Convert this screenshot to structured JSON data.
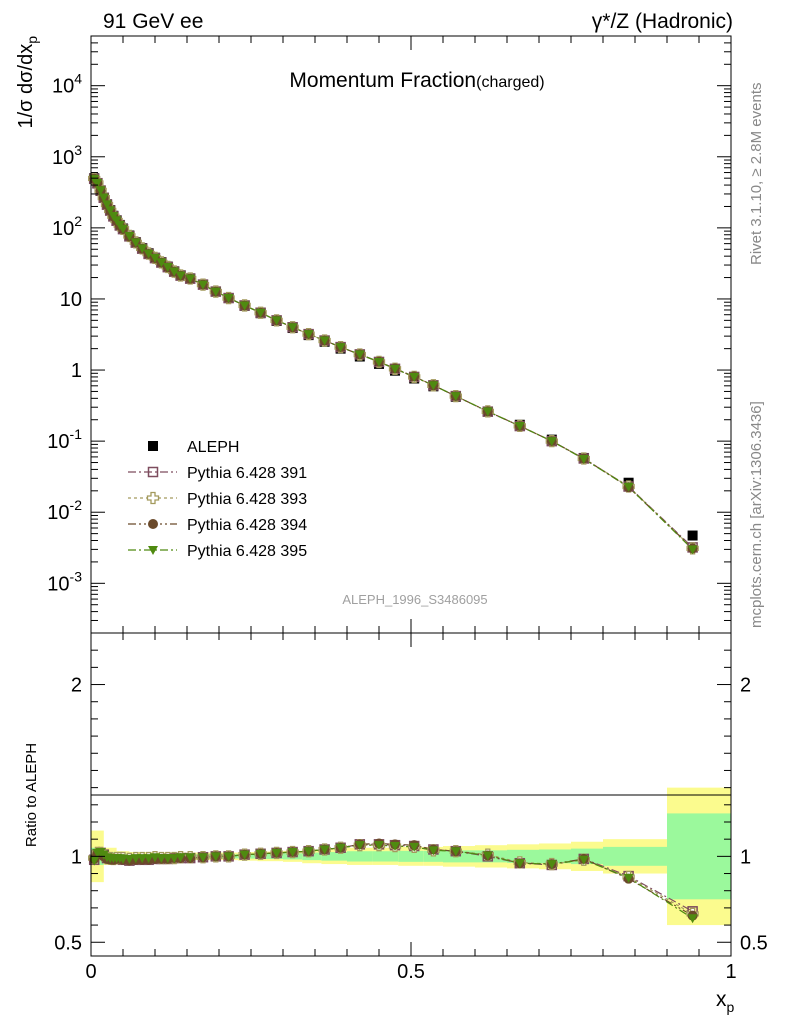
{
  "header": {
    "left": "91 GeV ee",
    "right": "γ*/Z (Hadronic)"
  },
  "side_text": {
    "rivet": "Rivet 3.1.10, ≥ 2.8M events",
    "mcplots": "mcplots.cern.ch [arXiv:1306.3436]"
  },
  "chart_data": [
    {
      "type": "scatter",
      "title": "Momentum Fraction",
      "title_suffix": "(charged)",
      "ylabel": "1/σ dσ/dx_p",
      "xlabel": "x_p",
      "watermark": "ALEPH_1996_S3486095",
      "yscale": "log",
      "xlim": [
        0,
        1
      ],
      "ylim": [
        0.0002,
        50000
      ],
      "ytick_labels": [
        "10^-3",
        "10^-2",
        "10^-1",
        "1",
        "10",
        "10^2",
        "10^3",
        "10^4"
      ],
      "xtick_labels": [
        "0",
        "0.5",
        "1"
      ],
      "legend_position": "lower-left",
      "series": [
        {
          "name": "ALEPH",
          "color": "#000000",
          "marker": "filled-square",
          "x": [
            0.005,
            0.01,
            0.015,
            0.02,
            0.025,
            0.03,
            0.035,
            0.04,
            0.045,
            0.05,
            0.06,
            0.07,
            0.08,
            0.09,
            0.1,
            0.11,
            0.12,
            0.13,
            0.14,
            0.155,
            0.175,
            0.195,
            0.215,
            0.24,
            0.265,
            0.29,
            0.315,
            0.34,
            0.365,
            0.39,
            0.42,
            0.45,
            0.475,
            0.505,
            0.535,
            0.57,
            0.62,
            0.67,
            0.72,
            0.77,
            0.84,
            0.94
          ],
          "y": [
            500,
            420,
            330,
            265,
            215,
            178,
            148,
            128,
            110,
            98,
            78,
            63,
            52,
            44,
            38,
            33,
            28.5,
            24.5,
            21.5,
            19.5,
            16,
            12.7,
            10.3,
            8,
            6.3,
            4.9,
            3.9,
            3.1,
            2.5,
            2.0,
            1.55,
            1.22,
            0.98,
            0.76,
            0.59,
            0.42,
            0.26,
            0.17,
            0.105,
            0.058,
            0.026,
            0.0047
          ]
        },
        {
          "name": "Pythia 6.428 391",
          "color": "#7d4c5e",
          "marker": "open-square",
          "x": [
            0.005,
            0.01,
            0.015,
            0.02,
            0.025,
            0.03,
            0.035,
            0.04,
            0.045,
            0.05,
            0.06,
            0.07,
            0.08,
            0.09,
            0.1,
            0.11,
            0.12,
            0.13,
            0.14,
            0.155,
            0.175,
            0.195,
            0.215,
            0.24,
            0.265,
            0.29,
            0.315,
            0.34,
            0.365,
            0.39,
            0.42,
            0.45,
            0.475,
            0.505,
            0.535,
            0.57,
            0.62,
            0.67,
            0.72,
            0.77,
            0.84,
            0.94
          ],
          "y": [
            490,
            425,
            335,
            265,
            212,
            175,
            145,
            126,
            108,
            96,
            76,
            62,
            51,
            43,
            37.5,
            32.5,
            28,
            24.2,
            21.3,
            19.3,
            15.9,
            12.7,
            10.3,
            8.1,
            6.4,
            5.0,
            4.0,
            3.2,
            2.6,
            2.1,
            1.66,
            1.3,
            1.04,
            0.8,
            0.61,
            0.43,
            0.26,
            0.163,
            0.1,
            0.057,
            0.023,
            0.0032
          ]
        },
        {
          "name": "Pythia 6.428 393",
          "color": "#a39a5d",
          "marker": "open-cross",
          "x": [
            0.005,
            0.01,
            0.015,
            0.02,
            0.025,
            0.03,
            0.035,
            0.04,
            0.045,
            0.05,
            0.06,
            0.07,
            0.08,
            0.09,
            0.1,
            0.11,
            0.12,
            0.13,
            0.14,
            0.155,
            0.175,
            0.195,
            0.215,
            0.24,
            0.265,
            0.29,
            0.315,
            0.34,
            0.365,
            0.39,
            0.42,
            0.45,
            0.475,
            0.505,
            0.535,
            0.57,
            0.62,
            0.67,
            0.72,
            0.77,
            0.84,
            0.94
          ],
          "y": [
            495,
            428,
            336,
            266,
            213,
            176,
            146,
            127,
            109,
            97,
            77,
            62.5,
            51.5,
            43.5,
            37.8,
            32.7,
            28.2,
            24.3,
            21.4,
            19.4,
            15.9,
            12.7,
            10.3,
            8.1,
            6.4,
            5.0,
            4.0,
            3.2,
            2.6,
            2.1,
            1.65,
            1.3,
            1.04,
            0.8,
            0.61,
            0.43,
            0.262,
            0.164,
            0.1,
            0.057,
            0.023,
            0.0031
          ]
        },
        {
          "name": "Pythia 6.428 394",
          "color": "#6b4a2b",
          "marker": "filled-circle",
          "x": [
            0.005,
            0.01,
            0.015,
            0.02,
            0.025,
            0.03,
            0.035,
            0.04,
            0.045,
            0.05,
            0.06,
            0.07,
            0.08,
            0.09,
            0.1,
            0.11,
            0.12,
            0.13,
            0.14,
            0.155,
            0.175,
            0.195,
            0.215,
            0.24,
            0.265,
            0.29,
            0.315,
            0.34,
            0.365,
            0.39,
            0.42,
            0.45,
            0.475,
            0.505,
            0.535,
            0.57,
            0.62,
            0.67,
            0.72,
            0.77,
            0.84,
            0.94
          ],
          "y": [
            492,
            426,
            334,
            264,
            211,
            174,
            145,
            126,
            108,
            96,
            76,
            62,
            51,
            43,
            37.5,
            32.5,
            28,
            24.2,
            21.3,
            19.3,
            15.9,
            12.7,
            10.3,
            8.1,
            6.4,
            5.0,
            4.0,
            3.2,
            2.6,
            2.1,
            1.66,
            1.31,
            1.05,
            0.81,
            0.61,
            0.43,
            0.262,
            0.163,
            0.1,
            0.057,
            0.0225,
            0.0031
          ]
        },
        {
          "name": "Pythia 6.428 395",
          "color": "#4f8a10",
          "marker": "filled-triangle-down",
          "x": [
            0.005,
            0.01,
            0.015,
            0.02,
            0.025,
            0.03,
            0.035,
            0.04,
            0.045,
            0.05,
            0.06,
            0.07,
            0.08,
            0.09,
            0.1,
            0.11,
            0.12,
            0.13,
            0.14,
            0.155,
            0.175,
            0.195,
            0.215,
            0.24,
            0.265,
            0.29,
            0.315,
            0.34,
            0.365,
            0.39,
            0.42,
            0.45,
            0.475,
            0.505,
            0.535,
            0.57,
            0.62,
            0.67,
            0.72,
            0.77,
            0.84,
            0.94
          ],
          "y": [
            488,
            430,
            338,
            267,
            214,
            177,
            147,
            128,
            110,
            97,
            77,
            62.5,
            51.5,
            43.5,
            37.8,
            32.7,
            28.2,
            24.3,
            21.4,
            19.4,
            15.9,
            12.7,
            10.3,
            8.1,
            6.4,
            5.0,
            4.0,
            3.2,
            2.6,
            2.1,
            1.66,
            1.3,
            1.04,
            0.8,
            0.61,
            0.43,
            0.262,
            0.163,
            0.1,
            0.056,
            0.0228,
            0.003
          ]
        }
      ]
    },
    {
      "type": "scatter",
      "ylabel": "Ratio to ALEPH",
      "xlabel": "x_p",
      "xlim": [
        0,
        1
      ],
      "ylim": [
        0.42,
        2.3
      ],
      "ytick_labels": [
        "0.5",
        "1",
        "2"
      ],
      "xtick_labels": [
        "0",
        "0.5",
        "1"
      ],
      "band": {
        "edges": [
          0,
          0.02,
          0.04,
          0.06,
          0.08,
          0.1,
          0.12,
          0.14,
          0.16,
          0.18,
          0.2,
          0.23,
          0.26,
          0.3,
          0.33,
          0.36,
          0.4,
          0.44,
          0.48,
          0.52,
          0.55,
          0.6,
          0.65,
          0.7,
          0.75,
          0.8,
          0.9,
          1.0
        ],
        "inner": [
          0.05,
          0.025,
          0.015,
          0.012,
          0.012,
          0.012,
          0.012,
          0.012,
          0.012,
          0.012,
          0.012,
          0.013,
          0.015,
          0.018,
          0.022,
          0.025,
          0.03,
          0.03,
          0.032,
          0.032,
          0.035,
          0.035,
          0.038,
          0.04,
          0.045,
          0.055,
          0.25
        ],
        "outer": [
          0.15,
          0.05,
          0.03,
          0.025,
          0.025,
          0.022,
          0.022,
          0.022,
          0.022,
          0.022,
          0.022,
          0.025,
          0.028,
          0.032,
          0.04,
          0.045,
          0.05,
          0.05,
          0.055,
          0.055,
          0.06,
          0.065,
          0.07,
          0.075,
          0.085,
          0.1,
          0.4
        ],
        "inner_color": "#9bf99c",
        "outer_color": "#fbfb8e"
      },
      "series": [
        {
          "name": "Pythia 6.428 391",
          "color": "#7d4c5e",
          "marker": "open-square",
          "x": [
            0.005,
            0.01,
            0.015,
            0.02,
            0.025,
            0.03,
            0.035,
            0.04,
            0.045,
            0.05,
            0.06,
            0.07,
            0.08,
            0.09,
            0.1,
            0.11,
            0.12,
            0.13,
            0.14,
            0.155,
            0.175,
            0.195,
            0.215,
            0.24,
            0.265,
            0.29,
            0.315,
            0.34,
            0.365,
            0.39,
            0.42,
            0.45,
            0.475,
            0.505,
            0.535,
            0.57,
            0.62,
            0.67,
            0.72,
            0.77,
            0.84,
            0.94
          ],
          "y": [
            0.98,
            1.01,
            1.02,
            1.01,
            0.99,
            0.985,
            0.985,
            0.985,
            0.985,
            0.98,
            0.975,
            0.98,
            0.98,
            0.98,
            0.985,
            0.985,
            0.985,
            0.99,
            0.99,
            0.99,
            0.995,
            1.0,
            1.0,
            1.01,
            1.015,
            1.02,
            1.025,
            1.03,
            1.04,
            1.05,
            1.07,
            1.07,
            1.065,
            1.06,
            1.04,
            1.03,
            1.0,
            0.96,
            0.95,
            0.985,
            0.885,
            0.68
          ]
        },
        {
          "name": "Pythia 6.428 393",
          "color": "#a39a5d",
          "marker": "open-cross",
          "x": [
            0.005,
            0.01,
            0.015,
            0.02,
            0.025,
            0.03,
            0.035,
            0.04,
            0.045,
            0.05,
            0.06,
            0.07,
            0.08,
            0.09,
            0.1,
            0.11,
            0.12,
            0.13,
            0.14,
            0.155,
            0.175,
            0.195,
            0.215,
            0.24,
            0.265,
            0.29,
            0.315,
            0.34,
            0.365,
            0.39,
            0.42,
            0.45,
            0.475,
            0.505,
            0.535,
            0.57,
            0.62,
            0.67,
            0.72,
            0.77,
            0.84,
            0.94
          ],
          "y": [
            0.99,
            1.02,
            1.02,
            1.005,
            0.99,
            0.99,
            0.985,
            0.99,
            0.99,
            0.99,
            0.985,
            0.99,
            0.99,
            0.99,
            0.995,
            0.99,
            0.99,
            0.99,
            0.995,
            0.995,
            0.995,
            1.0,
            1.0,
            1.01,
            1.015,
            1.02,
            1.025,
            1.03,
            1.04,
            1.05,
            1.065,
            1.065,
            1.06,
            1.055,
            1.035,
            1.03,
            1.01,
            0.965,
            0.955,
            0.98,
            0.88,
            0.665
          ]
        },
        {
          "name": "Pythia 6.428 394",
          "color": "#6b4a2b",
          "marker": "filled-circle",
          "x": [
            0.005,
            0.01,
            0.015,
            0.02,
            0.025,
            0.03,
            0.035,
            0.04,
            0.045,
            0.05,
            0.06,
            0.07,
            0.08,
            0.09,
            0.1,
            0.11,
            0.12,
            0.13,
            0.14,
            0.155,
            0.175,
            0.195,
            0.215,
            0.24,
            0.265,
            0.29,
            0.315,
            0.34,
            0.365,
            0.39,
            0.42,
            0.45,
            0.475,
            0.505,
            0.535,
            0.57,
            0.62,
            0.67,
            0.72,
            0.77,
            0.84,
            0.94
          ],
          "y": [
            0.985,
            1.015,
            1.01,
            1.0,
            0.985,
            0.98,
            0.98,
            0.985,
            0.985,
            0.98,
            0.975,
            0.98,
            0.98,
            0.98,
            0.985,
            0.985,
            0.985,
            0.99,
            0.99,
            0.99,
            0.995,
            1.0,
            1.0,
            1.01,
            1.015,
            1.02,
            1.025,
            1.03,
            1.04,
            1.05,
            1.07,
            1.075,
            1.07,
            1.065,
            1.04,
            1.03,
            1.005,
            0.96,
            0.955,
            0.985,
            0.87,
            0.655
          ]
        },
        {
          "name": "Pythia 6.428 395",
          "color": "#4f8a10",
          "marker": "filled-triangle-down",
          "x": [
            0.005,
            0.01,
            0.015,
            0.02,
            0.025,
            0.03,
            0.035,
            0.04,
            0.045,
            0.05,
            0.06,
            0.07,
            0.08,
            0.09,
            0.1,
            0.11,
            0.12,
            0.13,
            0.14,
            0.155,
            0.175,
            0.195,
            0.215,
            0.24,
            0.265,
            0.29,
            0.315,
            0.34,
            0.365,
            0.39,
            0.42,
            0.45,
            0.475,
            0.505,
            0.535,
            0.57,
            0.62,
            0.67,
            0.72,
            0.77,
            0.84,
            0.94
          ],
          "y": [
            0.975,
            1.02,
            1.025,
            1.01,
            0.995,
            0.99,
            0.99,
            0.99,
            0.99,
            0.985,
            0.985,
            0.99,
            0.99,
            0.99,
            0.995,
            0.99,
            0.99,
            0.99,
            0.995,
            0.995,
            0.995,
            1.0,
            1.0,
            1.01,
            1.015,
            1.02,
            1.025,
            1.03,
            1.04,
            1.05,
            1.065,
            1.065,
            1.06,
            1.055,
            1.035,
            1.03,
            1.005,
            0.96,
            0.955,
            0.98,
            0.875,
            0.64
          ]
        }
      ]
    }
  ]
}
